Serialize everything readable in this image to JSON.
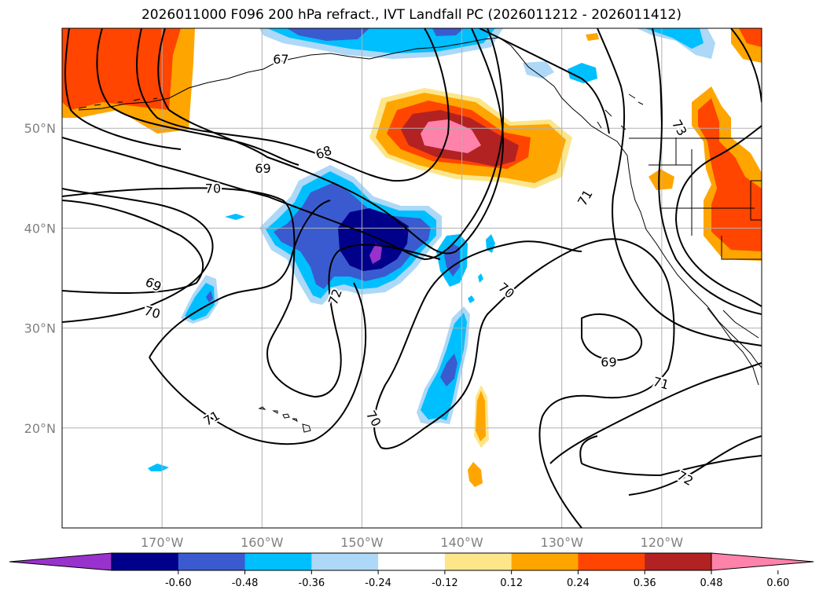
{
  "title": "2026011000 F096 200 hPa refract., IVT Landfall PC (2026011212 - 2026011412)",
  "map": {
    "lon_range": [
      -180,
      -110
    ],
    "lat_range": [
      10,
      60
    ],
    "lat_ticks": [
      {
        "value": 20,
        "label": "20°N"
      },
      {
        "value": 30,
        "label": "30°N"
      },
      {
        "value": 40,
        "label": "40°N"
      },
      {
        "value": 50,
        "label": "50°N"
      }
    ],
    "lon_ticks": [
      {
        "value": -170,
        "label": "170°W"
      },
      {
        "value": -160,
        "label": "160°W"
      },
      {
        "value": -150,
        "label": "150°W"
      },
      {
        "value": -140,
        "label": "140°W"
      },
      {
        "value": -130,
        "label": "130°W"
      },
      {
        "value": -120,
        "label": "120°W"
      }
    ],
    "grid": true,
    "contour_labels": [
      {
        "text": "67",
        "lon": -158.1,
        "lat": 56.8,
        "angle": 0
      },
      {
        "text": "68",
        "lon": -153.8,
        "lat": 47.5,
        "angle": 20
      },
      {
        "text": "69",
        "lon": -159.9,
        "lat": 45.9,
        "angle": 0
      },
      {
        "text": "70",
        "lon": -164.9,
        "lat": 43.9,
        "angle": 0
      },
      {
        "text": "69",
        "lon": -170.9,
        "lat": 34.3,
        "angle": -25
      },
      {
        "text": "70",
        "lon": -171.0,
        "lat": 31.5,
        "angle": -15
      },
      {
        "text": "72",
        "lon": -152.6,
        "lat": 33.1,
        "angle": 70
      },
      {
        "text": "70",
        "lon": -148.9,
        "lat": 20.9,
        "angle": -60
      },
      {
        "text": "71",
        "lon": -165.0,
        "lat": 20.9,
        "angle": 30
      },
      {
        "text": "70",
        "lon": -135.6,
        "lat": 33.7,
        "angle": -40
      },
      {
        "text": "69",
        "lon": -125.3,
        "lat": 26.5,
        "angle": 0
      },
      {
        "text": "71",
        "lon": -127.6,
        "lat": 43.0,
        "angle": 60
      },
      {
        "text": "73",
        "lon": -118.3,
        "lat": 50.0,
        "angle": -60
      },
      {
        "text": "71",
        "lon": -120.1,
        "lat": 24.4,
        "angle": -15
      },
      {
        "text": "72",
        "lon": -117.7,
        "lat": 14.9,
        "angle": -30
      }
    ]
  },
  "colorbar": {
    "levels": [
      "-0.60",
      "-0.48",
      "-0.36",
      "-0.24",
      "-0.12",
      "0.12",
      "0.24",
      "0.36",
      "0.48",
      "0.60"
    ],
    "colors": [
      "#9932cc",
      "#00008b",
      "#3a5bd0",
      "#00bfff",
      "#add8f7",
      "#ffffff",
      "#fde68a",
      "#ffa500",
      "#ff4500",
      "#b22222",
      "#ff82ab"
    ]
  }
}
